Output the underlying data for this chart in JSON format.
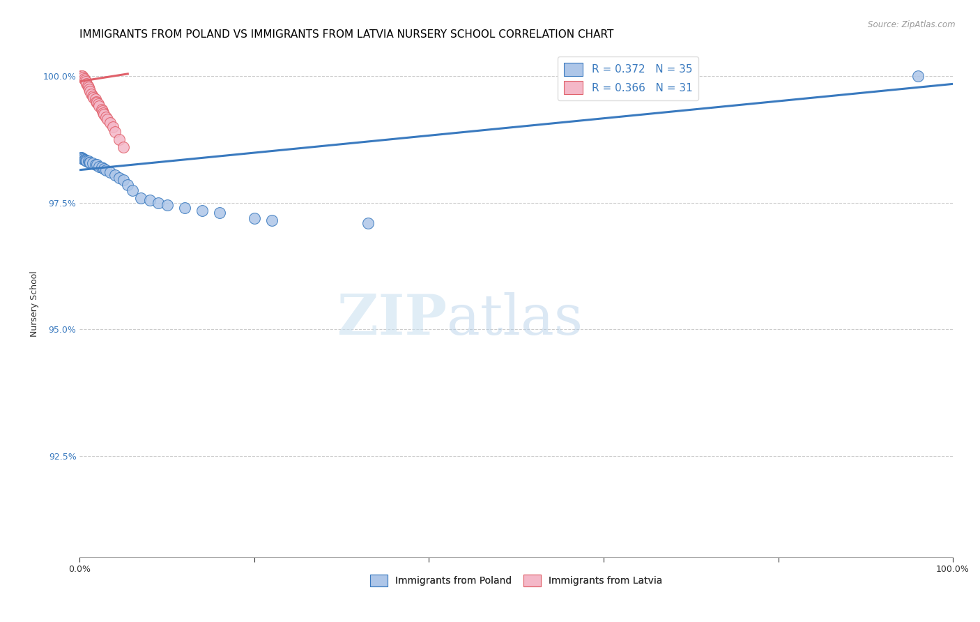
{
  "title": "IMMIGRANTS FROM POLAND VS IMMIGRANTS FROM LATVIA NURSERY SCHOOL CORRELATION CHART",
  "source": "Source: ZipAtlas.com",
  "ylabel": "Nursery School",
  "ytick_labels": [
    "100.0%",
    "97.5%",
    "95.0%",
    "92.5%"
  ],
  "ytick_values": [
    1.0,
    0.975,
    0.95,
    0.925
  ],
  "xlim": [
    0.0,
    1.0
  ],
  "ylim": [
    0.905,
    1.005
  ],
  "poland_color": "#aec6e8",
  "latvia_color": "#f4b8c8",
  "poland_line_color": "#3a7abf",
  "latvia_line_color": "#e0606a",
  "poland_R": 0.372,
  "poland_N": 35,
  "latvia_R": 0.366,
  "latvia_N": 31,
  "watermark_zip": "ZIP",
  "watermark_atlas": "atlas",
  "title_fontsize": 11,
  "axis_label_fontsize": 9,
  "tick_fontsize": 9,
  "legend_fontsize": 11,
  "poland_x": [
    0.001,
    0.002,
    0.003,
    0.004,
    0.005,
    0.006,
    0.007,
    0.008,
    0.01,
    0.011,
    0.012,
    0.015,
    0.018,
    0.02,
    0.022,
    0.025,
    0.028,
    0.03,
    0.035,
    0.04,
    0.045,
    0.05,
    0.055,
    0.06,
    0.07,
    0.08,
    0.09,
    0.1,
    0.12,
    0.14,
    0.16,
    0.2,
    0.22,
    0.33,
    0.96
  ],
  "poland_y": [
    0.984,
    0.984,
    0.9838,
    0.9836,
    0.9835,
    0.9835,
    0.9834,
    0.9833,
    0.9832,
    0.983,
    0.983,
    0.9828,
    0.9825,
    0.9825,
    0.9822,
    0.982,
    0.9818,
    0.9815,
    0.981,
    0.9805,
    0.98,
    0.9795,
    0.9785,
    0.9775,
    0.976,
    0.9755,
    0.975,
    0.9745,
    0.974,
    0.9735,
    0.973,
    0.972,
    0.9715,
    0.971,
    1.0
  ],
  "latvia_x": [
    0.001,
    0.002,
    0.003,
    0.004,
    0.005,
    0.006,
    0.007,
    0.008,
    0.009,
    0.01,
    0.011,
    0.012,
    0.013,
    0.015,
    0.016,
    0.018,
    0.019,
    0.02,
    0.021,
    0.022,
    0.025,
    0.026,
    0.027,
    0.028,
    0.03,
    0.032,
    0.035,
    0.038,
    0.04,
    0.045,
    0.05
  ],
  "latvia_y": [
    1.0,
    1.0,
    1.0,
    0.9998,
    0.9995,
    0.9993,
    0.999,
    0.9985,
    0.9982,
    0.9978,
    0.9975,
    0.997,
    0.9965,
    0.996,
    0.9958,
    0.9955,
    0.995,
    0.9948,
    0.9945,
    0.9942,
    0.9935,
    0.9932,
    0.9928,
    0.9925,
    0.992,
    0.9915,
    0.9908,
    0.99,
    0.989,
    0.9875,
    0.986
  ],
  "blue_line_x0": 0.0,
  "blue_line_y0": 0.9815,
  "blue_line_x1": 1.0,
  "blue_line_y1": 0.9985,
  "pink_line_x0": 0.0,
  "pink_line_y0": 0.999,
  "pink_line_x1": 0.055,
  "pink_line_y1": 1.0005
}
